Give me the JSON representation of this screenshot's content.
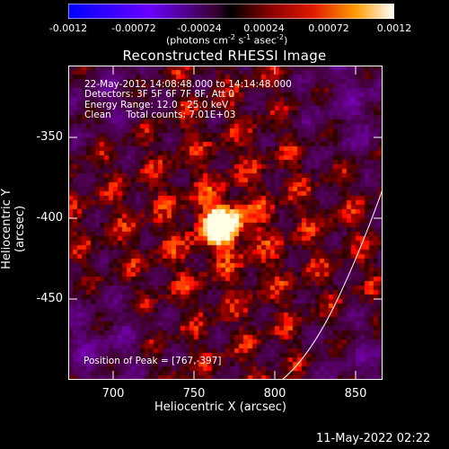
{
  "colorbar": {
    "ticks": [
      "-0.0012",
      "-0.00072",
      "-0.00024",
      "0.00024",
      "0.00072",
      "0.0012"
    ],
    "unit_prefix": "(photons cm",
    "unit_exp1": "-2",
    "unit_mid": " s",
    "unit_exp2": "-1",
    "unit_mid2": " asec",
    "unit_exp3": "-2",
    "unit_suffix": ")"
  },
  "title": "Reconstructed RHESSI Image",
  "info": {
    "time": "22-May-2012 14:08:48.000 to 14:14:48.000",
    "detectors": "Detectors: 3F 5F 6F 7F 8F, Att 0",
    "energy": "Energy Range: 12.0 - 25.0 keV",
    "clean": "Clean     Total counts: 7.01E+03"
  },
  "peak_label": "Position of Peak = [767,-397]",
  "axes": {
    "xlabel": "Heliocentric X (arcsec)",
    "ylabel": "Heliocentric Y (arcsec)",
    "xticks": [
      "700",
      "750",
      "800",
      "850"
    ],
    "yticks": [
      "-350",
      "-400",
      "-450"
    ]
  },
  "timestamp": "11-May-2022 02:22",
  "colors": {
    "background": "#000000",
    "text": "#ffffff",
    "limb": "#ffffff"
  },
  "chart_data": {
    "type": "heatmap",
    "title": "Reconstructed RHESSI Image",
    "xlabel": "Heliocentric X (arcsec)",
    "ylabel": "Heliocentric Y (arcsec)",
    "xlim": [
      673,
      867
    ],
    "ylim": [
      -494,
      -300
    ],
    "colorbar_range": [
      -0.0012,
      0.0012
    ],
    "peak": {
      "x": 767,
      "y": -397
    }
  }
}
